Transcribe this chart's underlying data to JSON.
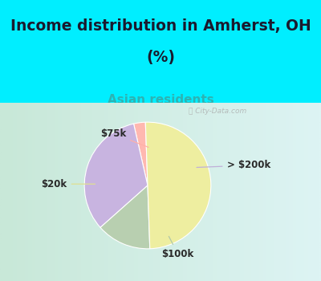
{
  "title_line1": "Income distribution in Amherst, OH",
  "title_line2": "(%)",
  "subtitle": "Asian residents",
  "title_color": "#1a1a2e",
  "subtitle_color": "#2db3b3",
  "bg_top_color": "#00eeff",
  "chart_bg_left": "#c8e8d8",
  "chart_bg_right": "#e8f8f8",
  "slices": [
    {
      "label": "$75k",
      "value": 3,
      "color": "#ffb8b0"
    },
    {
      "label": "> $200k",
      "value": 33,
      "color": "#c8b4e0"
    },
    {
      "label": "$100k",
      "value": 14,
      "color": "#b8cfb0"
    },
    {
      "label": "$20k",
      "value": 50,
      "color": "#eeeea0"
    }
  ],
  "start_angle": 92,
  "label_configs": [
    {
      "label": "$75k",
      "pie_pt": [
        0.04,
        0.52
      ],
      "text_pt": [
        -0.3,
        0.72
      ],
      "line_color": "#ffb0a8",
      "ha": "right"
    },
    {
      "label": "> $200k",
      "pie_pt": [
        0.65,
        0.25
      ],
      "text_pt": [
        1.1,
        0.28
      ],
      "line_color": "#c0b0d8",
      "ha": "left"
    },
    {
      "label": "$100k",
      "pie_pt": [
        0.28,
        -0.68
      ],
      "text_pt": [
        0.42,
        -0.95
      ],
      "line_color": "#b0c8a8",
      "ha": "center"
    },
    {
      "label": "$20k",
      "pie_pt": [
        -0.7,
        0.02
      ],
      "text_pt": [
        -1.12,
        0.02
      ],
      "line_color": "#e0e090",
      "ha": "right"
    }
  ],
  "figsize": [
    4.0,
    3.5
  ],
  "dpi": 100
}
